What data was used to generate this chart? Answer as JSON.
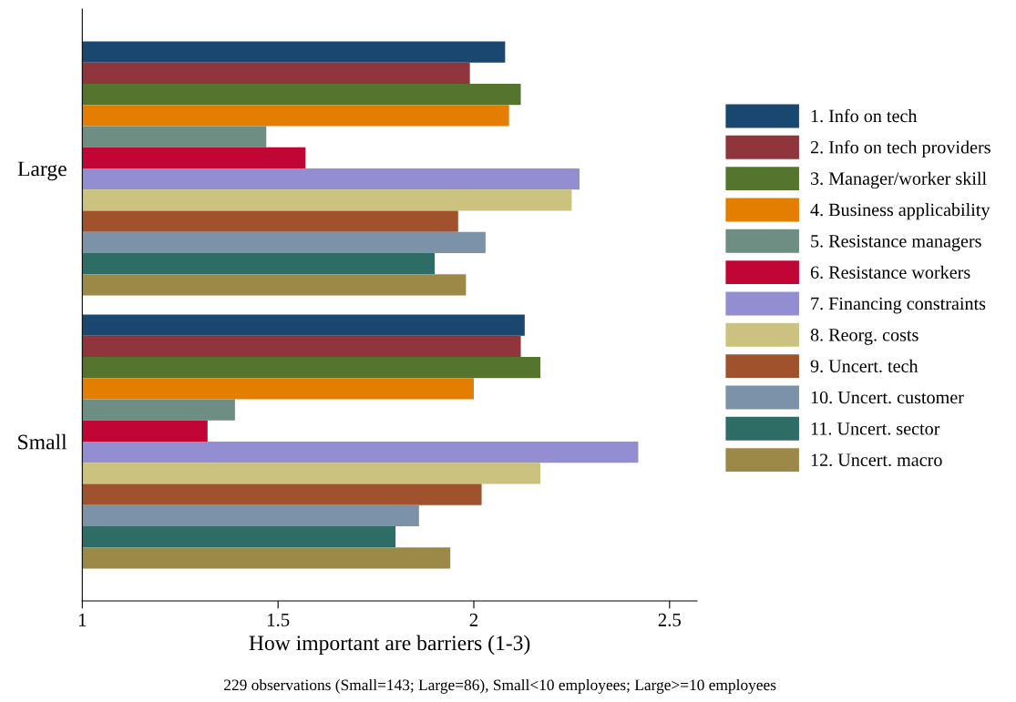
{
  "chart_data": {
    "type": "bar",
    "orientation": "horizontal",
    "categories": [
      "Large",
      "Small"
    ],
    "xlabel": "How important are barriers (1-3)",
    "annotations": [
      "229 observations (Small=143; Large=86), Small<10 employees; Large>=10 employees"
    ],
    "xlim": [
      1,
      2.57
    ],
    "xticks": [
      1,
      1.5,
      2,
      2.5
    ],
    "grid": false,
    "legend": "right",
    "series": [
      {
        "name": "1. Info on tech",
        "color": "#1a476f",
        "values": [
          2.08,
          2.13
        ]
      },
      {
        "name": "2. Info on tech providers",
        "color": "#90353b",
        "values": [
          1.99,
          2.12
        ]
      },
      {
        "name": "3. Manager/worker skill",
        "color": "#55752f",
        "values": [
          2.12,
          2.17
        ]
      },
      {
        "name": "4. Business applicability",
        "color": "#e37e00",
        "values": [
          2.09,
          2.0
        ]
      },
      {
        "name": "5. Resistance managers",
        "color": "#6e8e84",
        "values": [
          1.47,
          1.39
        ]
      },
      {
        "name": "6. Resistance workers",
        "color": "#c10534",
        "values": [
          1.57,
          1.32
        ]
      },
      {
        "name": "7. Financing constraints",
        "color": "#938dd2",
        "values": [
          2.27,
          2.42
        ]
      },
      {
        "name": "8. Reorg. costs",
        "color": "#cac27e",
        "values": [
          2.25,
          2.17
        ]
      },
      {
        "name": "9. Uncert. tech",
        "color": "#a0522d",
        "values": [
          1.96,
          2.02
        ]
      },
      {
        "name": "10. Uncert. customer",
        "color": "#7b92a8",
        "values": [
          2.03,
          1.86
        ]
      },
      {
        "name": "11. Uncert. sector",
        "color": "#2d6d66",
        "values": [
          1.9,
          1.8
        ]
      },
      {
        "name": "12. Uncert. macro",
        "color": "#9c8847",
        "values": [
          1.98,
          1.94
        ]
      }
    ]
  }
}
